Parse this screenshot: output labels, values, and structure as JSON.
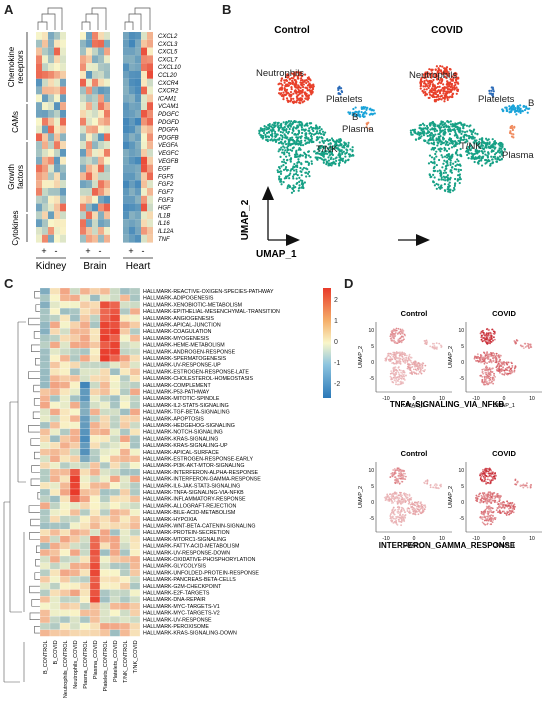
{
  "panels": {
    "a": "A",
    "b": "B",
    "c": "C",
    "d": "D"
  },
  "colors": {
    "low": "#2a78b8",
    "mid": "#f9f6c9",
    "high": "#e83a2a",
    "umap_red": "#e8402b",
    "umap_teal": "#16a085",
    "umap_blue": "#1aa3d9",
    "umap_orange": "#f08a5d"
  },
  "panel_a": {
    "row_groups": [
      {
        "name": "Chemokine\nreceptors",
        "lines": [
          "Chemokine",
          "receptors"
        ]
      },
      {
        "name": "CAMs",
        "lines": [
          "CAMs"
        ]
      },
      {
        "name": "Growth\nfactors",
        "lines": [
          "Growth",
          "factors"
        ]
      },
      {
        "name": "Cytokines",
        "lines": [
          "Cytokines"
        ]
      }
    ],
    "genes": [
      "CXCL2",
      "CXCL3",
      "CXCL5",
      "CXCL7",
      "CXCL10",
      "CCL20",
      "CXCR4",
      "CXCR2",
      "ICAM1",
      "VCAM1",
      "PDGFC",
      "PDGFD",
      "PDGFA",
      "PDGFB",
      "VEGFA",
      "VEGFC",
      "VEGFB",
      "EGF",
      "FGF5",
      "FGF2",
      "FGF7",
      "FGF3",
      "HGF",
      "IL1B",
      "IL16",
      "IL12A",
      "TNF"
    ],
    "tissues": [
      "Kidney",
      "Brain",
      "Heart"
    ],
    "signs": [
      "+",
      "-"
    ]
  },
  "panel_b": {
    "conditions": [
      "Control",
      "COVID"
    ],
    "clusters": [
      "Neutrophils",
      "Platelets",
      "B",
      "Plasma",
      "T/NK"
    ],
    "axis_x": "UMAP_1",
    "axis_y": "UMAP_2"
  },
  "panel_c": {
    "legend_ticks": [
      "2",
      "1",
      "0",
      "-1",
      "-2"
    ],
    "samples": [
      "B_CONTROL",
      "B_COVID",
      "Neutrophils_CONTROL",
      "Neutrophils_COVID",
      "Plasma_CONTROL",
      "Plasma_COVID",
      "Platelets_CONTROL",
      "Platelets_COVID",
      "T/NK_CONTROL",
      "T/NK_COVID"
    ],
    "pathways": [
      "HALLMARK-REACTIVE-OXIGEN-SPECIES-PATHWAY",
      "HALLMARK-ADIPOGENESIS",
      "HALLMARK-XENOBIOTIC-METABOLISM",
      "HALLMARK-EPITHELIAL-MESENCHYMAL-TRANSITION",
      "HALLMARK-ANGIOGENESIS",
      "HALLMARK-APICAL-JUNCTION",
      "HALLMARK-COAGULATION",
      "HALLMARK-MYOGENESIS",
      "HALLMARK-HEME-METABOLISM",
      "HALLMARK-ANDROGEN-RESPONSE",
      "HALLMARK-SPERMATOGENESIS",
      "HALLMARK-UV-RESPONSE-UP",
      "HALLMARK-ESTROGEN-RESPONSE-LATE",
      "HALLMARK-CHOLESTEROL-HOMEOSTASIS",
      "HALLMARK-COMPLEMENT",
      "HALLMARK-P53-PATHWAY",
      "HALLMARK-MITOTIC-SPINDLE",
      "HALLMARK-IL2-STAT5-SIGNALING",
      "HALLMARK-TGF-BETA-SIGNALING",
      "HALLMARK-APOPTOSIS",
      "HALLMARK-HEDGEHOG-SIGNALING",
      "HALLMARK-NOTCH-SIGNALING",
      "HALLMARK-KRAS-SIGNALING",
      "HALLMARK-KRAS-SIGNALING-UP",
      "HALLMARK-APICAL-SURFACE",
      "HALLMARK-ESTROGEN-RESPONSE-EARLY",
      "HALLMARK-PI3K-AKT-MTOR-SIGNALING",
      "HALLMARK-INTERFERON-ALPHA-RESPONSE",
      "HALLMARK-INTERFERON-GAMMA-RESPONSE",
      "HALLMARK-IL6-JAK-STAT3-SIGNALING",
      "HALLMARK-TNFA-SIGNALING-VIA-NFKB",
      "HALLMARK-INFLAMMATORY-RESPONSE",
      "HALLMARK-ALLOGRAFT-REJECTION",
      "HALLMARK-BILE-ACID-METABOLISM",
      "HALLMARK-HYPOXIA",
      "HALLMARK-WNT-BETA-CATENIN-SIGNALING",
      "HALLMARK-PROTEIN-SECRETION",
      "HALLMARK-MTORC1-SIGNALING",
      "HALLMARK-FATTY-ACID-METABOLISM",
      "HALLMARK-UV-RESPONSE-DOWN",
      "HALLMARK-OXIDATIVE-PHOSPHORYLATION",
      "HALLMARK-GLYCOLYSIS",
      "HALLMARK-UNFOLDED-PROTEIN-RESPONSE",
      "HALLMARK-PANCREAS-BETA-CELLS",
      "HALLMARK-G2M-CHECKPOINT",
      "HALLMARK-E2F-TARGETS",
      "HALLMARK-DNA-REPAIR",
      "HALLMARK-MYC-TARGETS-V1",
      "HALLMARK-MYC-TARGETS-V2",
      "HALLMARK-UV-RESPONSE",
      "HALLMARK-PEROXISOME",
      "HALLMARK-KRAS-SIGNALING-DOWN"
    ]
  },
  "panel_d": {
    "conditions": [
      "Control",
      "COVID"
    ],
    "gene_sets": [
      "TNFA_SIGNALING_VIA_NFKB",
      "INTERFERON_GAMMA_RESPONSE"
    ],
    "axis_x": "UMAP_1",
    "axis_y": "UMAP_2",
    "x_ticks": [
      "-10",
      "0",
      "10"
    ],
    "y_ticks": [
      "10",
      "5",
      "0",
      "-5"
    ]
  }
}
